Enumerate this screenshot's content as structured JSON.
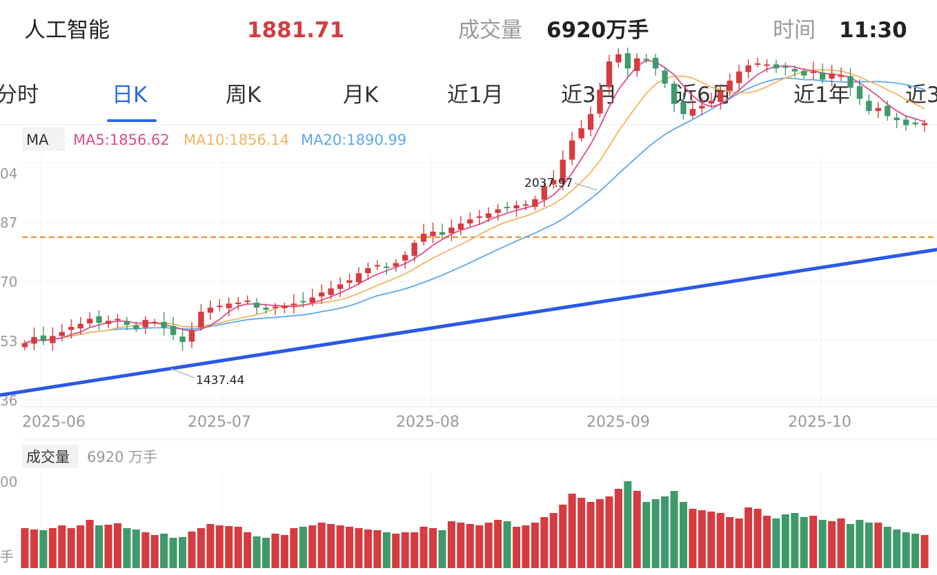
{
  "header": {
    "name": "人工智能",
    "price": "1881.71",
    "volume_label": "成交量",
    "volume_value": "6920万手",
    "time_label": "时间",
    "time_value": "11:30"
  },
  "tabs": [
    {
      "label": "分时"
    },
    {
      "label": "日K",
      "active": true
    },
    {
      "label": "周K"
    },
    {
      "label": "月K"
    },
    {
      "label": "近1月"
    },
    {
      "label": "近3月"
    },
    {
      "label": "近6月"
    },
    {
      "label": "近1年"
    },
    {
      "label": "近3"
    }
  ],
  "colors": {
    "up": "#d63b3f",
    "down": "#3e9a6a",
    "accent": "#2a6ae4",
    "ma5": "#e04a8a",
    "ma10": "#f2b45f",
    "ma20": "#5aa8ef",
    "ref_line": "#f28a1e"
  },
  "chart_data": {
    "type": "candlestick",
    "indicator_tag": "MA",
    "ma_legend": [
      {
        "label": "MA5:1856.62"
      },
      {
        "label": "MA10:1856.14"
      },
      {
        "label": "MA20:1890.99"
      }
    ],
    "y_tick_labels": [
      "04",
      "87",
      "70",
      "53",
      "36"
    ],
    "x_tick_labels": [
      "2025-06",
      "2025-07",
      "2025-08",
      "2025-09",
      "2025-10"
    ],
    "annotations": [
      {
        "label": "2037.97",
        "type": "max"
      },
      {
        "label": "1437.44",
        "type": "min"
      }
    ],
    "reference_level": 1881.71,
    "trendline": "blue support line rising from lower-left to right edge",
    "volume_panel": {
      "label": "成交量",
      "value": "6920 万手",
      "y_tick_labels": [
        "00",
        "手"
      ]
    }
  }
}
